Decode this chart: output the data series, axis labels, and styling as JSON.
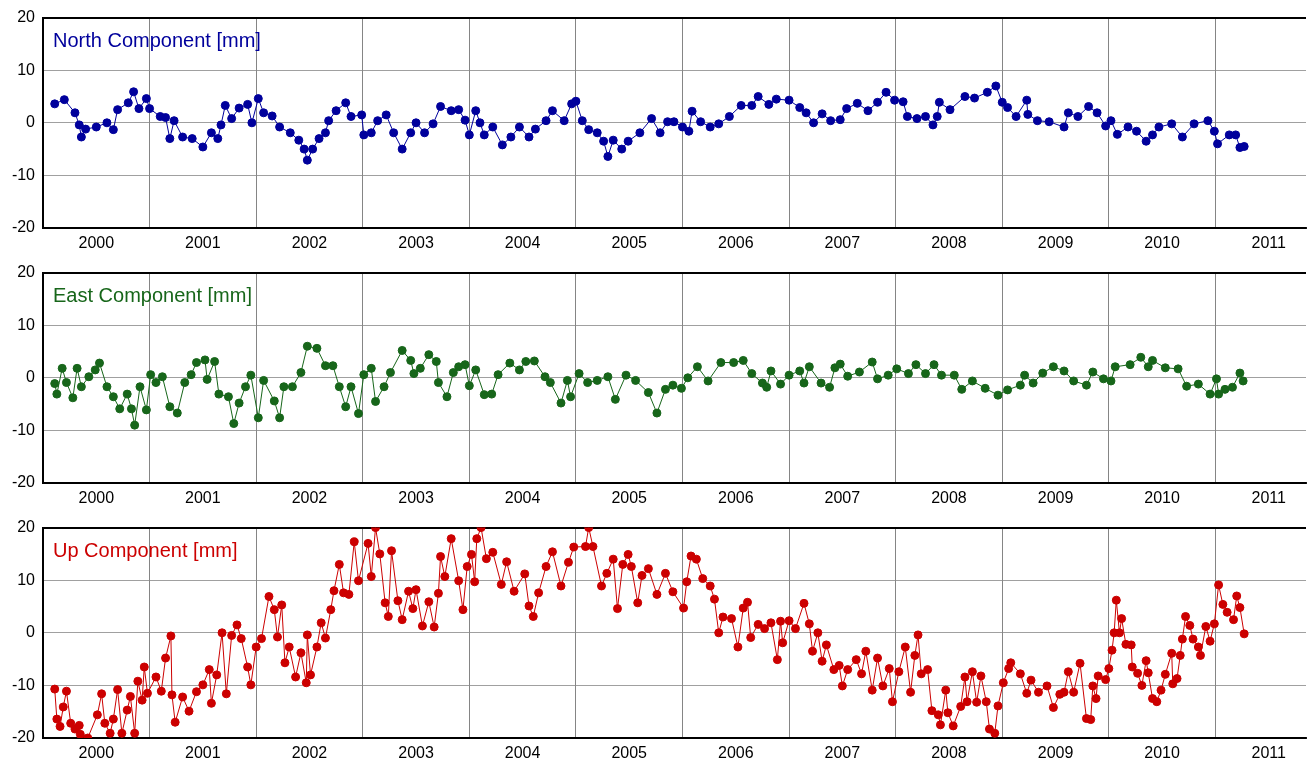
{
  "chart_data": [
    {
      "type": "line",
      "title": "North Component [mm]",
      "marker": "circle",
      "grid": true,
      "legend": false,
      "xlim": [
        2000,
        2011.85
      ],
      "ylim": [
        -20,
        20
      ],
      "yticks": [
        -20,
        -10,
        0,
        10,
        20
      ],
      "xticks": [
        {
          "value": 2000.5,
          "label": "2000"
        },
        {
          "value": 2001,
          "label": null
        },
        {
          "value": 2001.5,
          "label": "2001"
        },
        {
          "value": 2002,
          "label": null
        },
        {
          "value": 2002.5,
          "label": "2002"
        },
        {
          "value": 2003,
          "label": null
        },
        {
          "value": 2003.5,
          "label": "2003"
        },
        {
          "value": 2004,
          "label": null
        },
        {
          "value": 2004.5,
          "label": "2004"
        },
        {
          "value": 2005,
          "label": null
        },
        {
          "value": 2005.5,
          "label": "2005"
        },
        {
          "value": 2006,
          "label": null
        },
        {
          "value": 2006.5,
          "label": "2006"
        },
        {
          "value": 2007,
          "label": null
        },
        {
          "value": 2007.5,
          "label": "2007"
        },
        {
          "value": 2008,
          "label": null
        },
        {
          "value": 2008.5,
          "label": "2008"
        },
        {
          "value": 2009,
          "label": null
        },
        {
          "value": 2009.5,
          "label": "2009"
        },
        {
          "value": 2010,
          "label": null
        },
        {
          "value": 2010.5,
          "label": "2010"
        },
        {
          "value": 2011,
          "label": null
        },
        {
          "value": 2011.5,
          "label": "2011"
        }
      ],
      "series": [
        {
          "color": "#00009c",
          "x": [
            2000.11,
            2000.2,
            2000.3,
            2000.34,
            2000.36,
            2000.4,
            2000.5,
            2000.6,
            2000.66,
            2000.7,
            2000.8,
            2000.85,
            2000.9,
            2000.97,
            2001.0,
            2001.1,
            2001.15,
            2001.19,
            2001.23,
            2001.31,
            2001.4,
            2001.5,
            2001.58,
            2001.64,
            2001.67,
            2001.71,
            2001.77,
            2001.84,
            2001.92,
            2001.96,
            2002.02,
            2002.07,
            2002.15,
            2002.22,
            2002.32,
            2002.4,
            2002.45,
            2002.48,
            2002.53,
            2002.59,
            2002.65,
            2002.68,
            2002.75,
            2002.84,
            2002.89,
            2002.99,
            2003.01,
            2003.08,
            2003.14,
            2003.22,
            2003.29,
            2003.37,
            2003.45,
            2003.5,
            2003.58,
            2003.66,
            2003.73,
            2003.83,
            2003.9,
            2003.96,
            2004.0,
            2004.06,
            2004.1,
            2004.14,
            2004.22,
            2004.31,
            2004.39,
            2004.47,
            2004.56,
            2004.62,
            2004.72,
            2004.78,
            2004.89,
            2004.96,
            2005.0,
            2005.06,
            2005.12,
            2005.2,
            2005.26,
            2005.3,
            2005.35,
            2005.43,
            2005.49,
            2005.6,
            2005.71,
            2005.79,
            2005.86,
            2005.92,
            2006.0,
            2006.06,
            2006.09,
            2006.17,
            2006.26,
            2006.34,
            2006.44,
            2006.55,
            2006.65,
            2006.71,
            2006.81,
            2006.88,
            2007.0,
            2007.1,
            2007.16,
            2007.23,
            2007.31,
            2007.39,
            2007.48,
            2007.54,
            2007.64,
            2007.74,
            2007.83,
            2007.91,
            2007.99,
            2008.07,
            2008.11,
            2008.2,
            2008.28,
            2008.35,
            2008.39,
            2008.41,
            2008.51,
            2008.65,
            2008.74,
            2008.86,
            2008.94,
            2009.0,
            2009.05,
            2009.13,
            2009.23,
            2009.24,
            2009.33,
            2009.44,
            2009.58,
            2009.62,
            2009.71,
            2009.81,
            2009.89,
            2009.97,
            2010.02,
            2010.08,
            2010.18,
            2010.26,
            2010.35,
            2010.41,
            2010.47,
            2010.59,
            2010.69,
            2010.8,
            2010.93,
            2010.99,
            2011.02,
            2011.13,
            2011.19,
            2011.23,
            2011.27
          ],
          "values": [
            3.6,
            4.4,
            1.9,
            -0.4,
            -2.7,
            -1.2,
            -0.8,
            0,
            -1.3,
            2.5,
            3.8,
            5.9,
            2.7,
            4.6,
            2.7,
            1.2,
            1,
            -3,
            0.4,
            -2.7,
            -3,
            -4.6,
            -1.9,
            -3,
            -0.4,
            3.3,
            0.8,
            2.8,
            3.5,
            0,
            4.6,
            1.9,
            1.3,
            -0.8,
            -1.9,
            -3.3,
            -5,
            -7.1,
            -5,
            -3,
            -1.9,
            0.4,
            2.3,
            3.8,
            1.2,
            1.5,
            -2.3,
            -1.9,
            0.4,
            1.5,
            -1.9,
            -5,
            -1.9,
            0,
            -1.9,
            -0.2,
            3.1,
            2.3,
            2.5,
            0.5,
            -2.3,
            2.3,
            0,
            -2.3,
            -0.8,
            -4.2,
            -2.7,
            -0.8,
            -2.7,
            -1.2,
            0.4,
            2.3,
            0.4,
            3.6,
            4.1,
            0.4,
            -1.3,
            -1.9,
            -3.5,
            -6.4,
            -3.3,
            -5,
            -3.5,
            -1.9,
            0.8,
            -1.9,
            0.2,
            0.2,
            -0.8,
            -1.6,
            2.2,
            0.2,
            -0.8,
            -0.2,
            1.2,
            3.3,
            3.3,
            5,
            3.5,
            4.5,
            4.3,
            2.9,
            1.9,
            0,
            1.7,
            0.4,
            0.6,
            2.7,
            3.7,
            2.3,
            3.9,
            5.8,
            4.3,
            4,
            1.2,
            0.8,
            1.2,
            -0.4,
            1.2,
            3.9,
            2.5,
            5,
            4.7,
            5.8,
            7,
            3.9,
            2.9,
            1.2,
            4.3,
            1.6,
            0.4,
            0.2,
            -0.8,
            1.9,
            1.2,
            3.1,
            1.9,
            -0.6,
            0.4,
            -2.2,
            -0.8,
            -1.6,
            -3.5,
            -2.3,
            -0.8,
            -0.2,
            -2.7,
            -0.2,
            0.4,
            -1.6,
            -4,
            -2.3,
            -2.3,
            -4.7,
            -4.5
          ]
        }
      ]
    },
    {
      "type": "line",
      "title": "East Component [mm]",
      "marker": "circle",
      "grid": true,
      "legend": false,
      "xlim": [
        2000,
        2011.85
      ],
      "ylim": [
        -20,
        20
      ],
      "yticks": [
        -20,
        -10,
        0,
        10,
        20
      ],
      "xticks": [
        {
          "value": 2000.5,
          "label": "2000"
        },
        {
          "value": 2001,
          "label": null
        },
        {
          "value": 2001.5,
          "label": "2001"
        },
        {
          "value": 2002,
          "label": null
        },
        {
          "value": 2002.5,
          "label": "2002"
        },
        {
          "value": 2003,
          "label": null
        },
        {
          "value": 2003.5,
          "label": "2003"
        },
        {
          "value": 2004,
          "label": null
        },
        {
          "value": 2004.5,
          "label": "2004"
        },
        {
          "value": 2005,
          "label": null
        },
        {
          "value": 2005.5,
          "label": "2005"
        },
        {
          "value": 2006,
          "label": null
        },
        {
          "value": 2006.5,
          "label": "2006"
        },
        {
          "value": 2007,
          "label": null
        },
        {
          "value": 2007.5,
          "label": "2007"
        },
        {
          "value": 2008,
          "label": null
        },
        {
          "value": 2008.5,
          "label": "2008"
        },
        {
          "value": 2009,
          "label": null
        },
        {
          "value": 2009.5,
          "label": "2009"
        },
        {
          "value": 2010,
          "label": null
        },
        {
          "value": 2010.5,
          "label": "2010"
        },
        {
          "value": 2011,
          "label": null
        },
        {
          "value": 2011.5,
          "label": "2011"
        }
      ],
      "series": [
        {
          "color": "#17661a",
          "x": [
            2000.11,
            2000.13,
            2000.18,
            2000.22,
            2000.28,
            2000.32,
            2000.36,
            2000.43,
            2000.49,
            2000.53,
            2000.6,
            2000.66,
            2000.72,
            2000.79,
            2000.83,
            2000.86,
            2000.91,
            2000.97,
            2001.01,
            2001.06,
            2001.12,
            2001.19,
            2001.26,
            2001.33,
            2001.39,
            2001.44,
            2001.52,
            2001.54,
            2001.61,
            2001.65,
            2001.74,
            2001.79,
            2001.84,
            2001.9,
            2001.95,
            2002.02,
            2002.07,
            2002.17,
            2002.22,
            2002.26,
            2002.34,
            2002.42,
            2002.48,
            2002.57,
            2002.65,
            2002.72,
            2002.78,
            2002.84,
            2002.89,
            2002.96,
            2003.01,
            2003.08,
            2003.12,
            2003.2,
            2003.26,
            2003.37,
            2003.45,
            2003.48,
            2003.54,
            2003.62,
            2003.69,
            2003.71,
            2003.79,
            2003.85,
            2003.9,
            2003.96,
            2004.0,
            2004.06,
            2004.14,
            2004.21,
            2004.27,
            2004.38,
            2004.47,
            2004.53,
            2004.61,
            2004.71,
            2004.76,
            2004.86,
            2004.92,
            2004.95,
            2005.03,
            2005.11,
            2005.2,
            2005.3,
            2005.37,
            2005.47,
            2005.56,
            2005.68,
            2005.76,
            2005.84,
            2005.91,
            2005.99,
            2006.05,
            2006.14,
            2006.24,
            2006.36,
            2006.48,
            2006.57,
            2006.65,
            2006.75,
            2006.79,
            2006.83,
            2006.92,
            2007.0,
            2007.1,
            2007.14,
            2007.19,
            2007.3,
            2007.38,
            2007.43,
            2007.48,
            2007.55,
            2007.66,
            2007.78,
            2007.83,
            2007.93,
            2008.01,
            2008.12,
            2008.19,
            2008.28,
            2008.36,
            2008.43,
            2008.55,
            2008.62,
            2008.72,
            2008.84,
            2008.96,
            2009.05,
            2009.17,
            2009.21,
            2009.29,
            2009.38,
            2009.48,
            2009.58,
            2009.67,
            2009.79,
            2009.85,
            2009.95,
            2010.02,
            2010.06,
            2010.2,
            2010.3,
            2010.37,
            2010.41,
            2010.53,
            2010.65,
            2010.73,
            2010.84,
            2010.95,
            2011.01,
            2011.03,
            2011.09,
            2011.16,
            2011.23,
            2011.26
          ],
          "values": [
            -1.1,
            -3.1,
            1.8,
            -0.9,
            -3.8,
            1.8,
            -1.7,
            0.2,
            1.5,
            2.8,
            -1.7,
            -3.6,
            -5.9,
            -3.1,
            -5.9,
            -9,
            -1.7,
            -6.1,
            0.6,
            -0.9,
            0.2,
            -5.5,
            -6.7,
            -0.9,
            0.6,
            2.9,
            3.4,
            -0.3,
            3.1,
            -3.1,
            -3.6,
            -8.7,
            -4.8,
            -1.7,
            0.5,
            -7.6,
            -0.5,
            -4.4,
            -7.6,
            -1.7,
            -1.7,
            1,
            6,
            5.6,
            2.3,
            2.3,
            -1.7,
            -5.5,
            -1.7,
            -6.8,
            0.6,
            1.8,
            -4.5,
            -1.7,
            1,
            5.2,
            3.3,
            0.8,
            1.8,
            4.4,
            3.1,
            -0.9,
            -3.6,
            1,
            2.1,
            2.5,
            -1.5,
            1.5,
            -3.2,
            -3.1,
            0.6,
            2.8,
            1.5,
            3.1,
            3.2,
            0.2,
            -0.9,
            -4.8,
            -0.5,
            -3.6,
            0.8,
            -0.9,
            -0.5,
            0.2,
            -4.1,
            0.5,
            -0.5,
            -2.8,
            -6.7,
            -2.2,
            -1.4,
            -2,
            0,
            2.1,
            -0.6,
            2.9,
            2.9,
            3.3,
            0.8,
            -1,
            -1.8,
            1.3,
            -1.2,
            0.5,
            1.3,
            -1,
            2.1,
            -1,
            -1.8,
            1.9,
            2.6,
            0.3,
            1.1,
            3,
            -0.2,
            0.5,
            1.7,
            0.8,
            2.5,
            0.8,
            2.5,
            0.5,
            0.5,
            -2.2,
            -0.6,
            -2,
            -3.3,
            -2.3,
            -1.4,
            0.5,
            -1,
            0.9,
            2.1,
            1.3,
            -0.6,
            -1.4,
            1.1,
            -0.2,
            -0.6,
            2.1,
            2.5,
            3.9,
            2.1,
            3.3,
            1.9,
            1.7,
            -1.6,
            -1.2,
            -3.1,
            -0.2,
            -3.1,
            -2.2,
            -1.8,
            0.9,
            -0.6
          ]
        }
      ]
    },
    {
      "type": "line",
      "title": "Up Component [mm]",
      "marker": "circle",
      "grid": true,
      "legend": false,
      "xlim": [
        2000,
        2011.85
      ],
      "ylim": [
        -20,
        20
      ],
      "yticks": [
        -20,
        -10,
        0,
        10,
        20
      ],
      "xticks": [
        {
          "value": 2000.5,
          "label": "2000"
        },
        {
          "value": 2001,
          "label": null
        },
        {
          "value": 2001.5,
          "label": "2001"
        },
        {
          "value": 2002,
          "label": null
        },
        {
          "value": 2002.5,
          "label": "2002"
        },
        {
          "value": 2003,
          "label": null
        },
        {
          "value": 2003.5,
          "label": "2003"
        },
        {
          "value": 2004,
          "label": null
        },
        {
          "value": 2004.5,
          "label": "2004"
        },
        {
          "value": 2005,
          "label": null
        },
        {
          "value": 2005.5,
          "label": "2005"
        },
        {
          "value": 2006,
          "label": null
        },
        {
          "value": 2006.5,
          "label": "2006"
        },
        {
          "value": 2007,
          "label": null
        },
        {
          "value": 2007.5,
          "label": "2007"
        },
        {
          "value": 2008,
          "label": null
        },
        {
          "value": 2008.5,
          "label": "2008"
        },
        {
          "value": 2009,
          "label": null
        },
        {
          "value": 2009.5,
          "label": "2009"
        },
        {
          "value": 2010,
          "label": null
        },
        {
          "value": 2010.5,
          "label": "2010"
        },
        {
          "value": 2011,
          "label": null
        },
        {
          "value": 2011.5,
          "label": "2011"
        }
      ],
      "series": [
        {
          "color": "#cc0000",
          "x": [
            2000.11,
            2000.13,
            2000.16,
            2000.19,
            2000.22,
            2000.26,
            2000.3,
            2000.34,
            2000.35,
            2000.42,
            2000.51,
            2000.55,
            2000.58,
            2000.63,
            2000.66,
            2000.7,
            2000.74,
            2000.79,
            2000.82,
            2000.86,
            2000.89,
            2000.93,
            2000.95,
            2000.98,
            2001.06,
            2001.11,
            2001.15,
            2001.2,
            2001.21,
            2001.24,
            2001.31,
            2001.37,
            2001.44,
            2001.5,
            2001.56,
            2001.58,
            2001.63,
            2001.68,
            2001.72,
            2001.77,
            2001.82,
            2001.86,
            2001.92,
            2001.95,
            2002.0,
            2002.05,
            2002.12,
            2002.17,
            2002.2,
            2002.24,
            2002.27,
            2002.31,
            2002.37,
            2002.42,
            2002.47,
            2002.48,
            2002.51,
            2002.57,
            2002.61,
            2002.65,
            2002.7,
            2002.73,
            2002.78,
            2002.82,
            2002.87,
            2002.92,
            2002.96,
            2003.05,
            2003.08,
            2003.12,
            2003.16,
            2003.21,
            2003.24,
            2003.27,
            2003.33,
            2003.37,
            2003.43,
            2003.47,
            2003.5,
            2003.56,
            2003.62,
            2003.67,
            2003.71,
            2003.73,
            2003.77,
            2003.83,
            2003.9,
            2003.94,
            2003.98,
            2004.02,
            2004.05,
            2004.07,
            2004.11,
            2004.16,
            2004.22,
            2004.3,
            2004.35,
            2004.42,
            2004.52,
            2004.56,
            2004.6,
            2004.65,
            2004.72,
            2004.78,
            2004.86,
            2004.93,
            2004.98,
            2005.09,
            2005.12,
            2005.16,
            2005.24,
            2005.29,
            2005.35,
            2005.39,
            2005.44,
            2005.49,
            2005.52,
            2005.58,
            2005.62,
            2005.68,
            2005.76,
            2005.84,
            2005.91,
            2006.01,
            2006.04,
            2006.08,
            2006.13,
            2006.19,
            2006.26,
            2006.3,
            2006.34,
            2006.38,
            2006.46,
            2006.52,
            2006.57,
            2006.61,
            2006.64,
            2006.71,
            2006.77,
            2006.83,
            2006.89,
            2006.92,
            2006.94,
            2007.0,
            2007.06,
            2007.14,
            2007.19,
            2007.22,
            2007.27,
            2007.31,
            2007.35,
            2007.42,
            2007.47,
            2007.5,
            2007.55,
            2007.63,
            2007.68,
            2007.72,
            2007.78,
            2007.83,
            2007.88,
            2007.94,
            2007.97,
            2008.03,
            2008.09,
            2008.14,
            2008.18,
            2008.21,
            2008.24,
            2008.3,
            2008.34,
            2008.4,
            2008.42,
            2008.47,
            2008.49,
            2008.54,
            2008.61,
            2008.65,
            2008.67,
            2008.72,
            2008.76,
            2008.8,
            2008.85,
            2008.88,
            2008.93,
            2008.96,
            2009.01,
            2009.06,
            2009.08,
            2009.17,
            2009.23,
            2009.27,
            2009.34,
            2009.42,
            2009.48,
            2009.54,
            2009.58,
            2009.62,
            2009.67,
            2009.73,
            2009.79,
            2009.83,
            2009.85,
            2009.88,
            2009.9,
            2009.97,
            2010.0,
            2010.03,
            2010.05,
            2010.07,
            2010.1,
            2010.12,
            2010.16,
            2010.21,
            2010.22,
            2010.27,
            2010.31,
            2010.35,
            2010.37,
            2010.41,
            2010.45,
            2010.49,
            2010.53,
            2010.59,
            2010.6,
            2010.64,
            2010.67,
            2010.69,
            2010.72,
            2010.76,
            2010.79,
            2010.84,
            2010.86,
            2010.91,
            2010.95,
            2010.99,
            2011.03,
            2011.07,
            2011.11,
            2011.17,
            2011.2,
            2011.23,
            2011.27
          ],
          "values": [
            -10.7,
            -16.4,
            -17.8,
            -14.1,
            -11.1,
            -17.2,
            -18.3,
            -17.6,
            -19.3,
            -20,
            -15.6,
            -11.6,
            -17.2,
            -19.1,
            -16.4,
            -10.8,
            -19.1,
            -14.7,
            -12.1,
            -19.1,
            -9.2,
            -12.8,
            -6.5,
            -11.5,
            -8.4,
            -11.1,
            -4.8,
            -0.6,
            -11.8,
            -17,
            -12.2,
            -14.9,
            -11.2,
            -9.9,
            -7,
            -13.4,
            -8,
            0,
            -11.6,
            -0.5,
            1.5,
            -1.1,
            -6.5,
            -9.9,
            -2.7,
            -1.1,
            6.9,
            4.4,
            -0.8,
            5.3,
            -5.7,
            -2.7,
            -8.4,
            -3.8,
            -9.5,
            -0.4,
            -8,
            -2.7,
            1.9,
            -1,
            4.4,
            8,
            13,
            7.6,
            7.3,
            17.3,
            9.9,
            17,
            10.7,
            20,
            15,
            5.7,
            3.1,
            15.6,
            6.1,
            2.5,
            7.9,
            4.6,
            8.2,
            1.3,
            5.9,
            1.1,
            7.5,
            14.5,
            10.7,
            17.9,
            9.9,
            4.4,
            12.6,
            14.9,
            9.7,
            17.9,
            20,
            14.1,
            15.3,
            9.2,
            13.5,
            7.9,
            11.2,
            5.1,
            3.1,
            7.6,
            12.6,
            15.4,
            8.9,
            13.4,
            16.3,
            16.4,
            20,
            16.4,
            8.9,
            11.3,
            14,
            4.6,
            13,
            14.9,
            12.6,
            5.7,
            10.9,
            12.2,
            7.3,
            11.3,
            7.8,
            4.7,
            9.7,
            14.6,
            14,
            10.3,
            8.9,
            6.4,
            0,
            3,
            2.7,
            -2.7,
            4.7,
            5.8,
            -0.9,
            1.6,
            0.8,
            1.9,
            -5.1,
            2.2,
            -1.9,
            2.3,
            0.8,
            5.6,
            1.7,
            -3.5,
            0,
            -5.4,
            -2.3,
            -7,
            -6.2,
            -10.1,
            -7,
            -5.1,
            -7.8,
            -3.5,
            -10.9,
            -4.8,
            -10.1,
            -6.8,
            -13.1,
            -7.4,
            -2.7,
            -11.3,
            -4.3,
            -0.4,
            -7.8,
            -7,
            -14.8,
            -15.6,
            -17.5,
            -10.9,
            -15.2,
            -17.7,
            -14,
            -8.4,
            -13.1,
            -7.4,
            -13.2,
            -8.2,
            -13.1,
            -18.3,
            -19.1,
            -13.9,
            -9.5,
            -6.8,
            -5.7,
            -7.8,
            -11.5,
            -9,
            -11.3,
            -10.1,
            -14.2,
            -11.7,
            -11.3,
            -7.4,
            -11.3,
            -5.8,
            -16.3,
            -16.5,
            -10.1,
            -12.5,
            -8.2,
            -8.9,
            -6.8,
            -3.3,
            0,
            6.2,
            0,
            2.7,
            -2.2,
            -2.3,
            -6.5,
            -7.7,
            -10,
            -5.3,
            -7.6,
            -12.5,
            -13.1,
            -10.9,
            -7.9,
            -3.9,
            -9.7,
            -8.7,
            -4.3,
            -1.2,
            3.1,
            1.4,
            -1.2,
            -2.7,
            -4.3,
            1.2,
            -1.6,
            1.7,
            9.1,
            5.4,
            3.9,
            2.5,
            7,
            4.8,
            -0.2
          ]
        }
      ]
    }
  ]
}
